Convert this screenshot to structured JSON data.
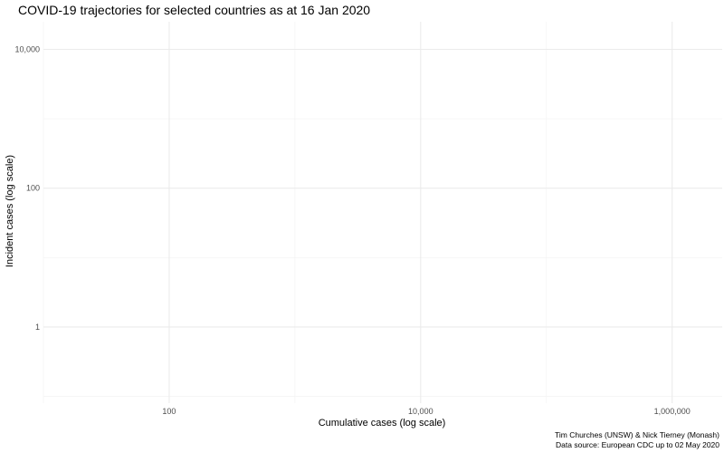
{
  "chart_data": {
    "type": "line",
    "title": "COVID-19 trajectories for selected countries as at 16 Jan 2020",
    "xlabel": "Cumulative cases (log scale)",
    "ylabel": "Incident cases (log scale)",
    "x_scale": "log10",
    "y_scale": "log10",
    "xlim": [
      10,
      2500000
    ],
    "ylim": [
      0.08,
      25000
    ],
    "x_ticks": [
      {
        "value": 100,
        "label": "100"
      },
      {
        "value": 10000,
        "label": "10,000"
      },
      {
        "value": 1000000,
        "label": "1,000,000"
      }
    ],
    "x_minor_ticks": [
      10,
      1000,
      100000
    ],
    "y_ticks": [
      {
        "value": 1,
        "label": "1"
      },
      {
        "value": 100,
        "label": "100"
      },
      {
        "value": 10000,
        "label": "10,000"
      }
    ],
    "y_minor_ticks": [
      0.1,
      10,
      1000
    ],
    "grid": true,
    "series": [],
    "caption_lines": [
      "Tim Churches (UNSW) & Nick Tierney (Monash)",
      "Data source: European CDC up to 02 May 2020"
    ],
    "colors": {
      "background": "#ffffff",
      "grid_major": "#ebebeb",
      "grid_minor": "#f2f2f2",
      "tick_text": "#4d4d4d",
      "text": "#000000"
    }
  }
}
